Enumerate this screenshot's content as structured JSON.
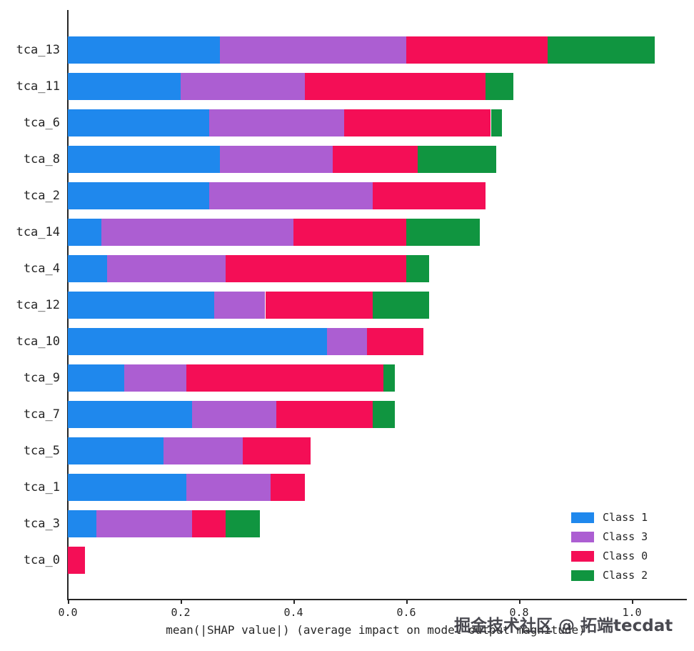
{
  "chart_data": {
    "type": "bar",
    "orientation": "horizontal",
    "stacked": true,
    "title": "",
    "xlabel": "mean(|SHAP value|) (average impact on model output magnitude)",
    "ylabel": "",
    "xlim": [
      0,
      1.1
    ],
    "grid": false,
    "legend_position": "lower right",
    "categories": [
      "tca_13",
      "tca_11",
      "tca_6",
      "tca_8",
      "tca_2",
      "tca_14",
      "tca_4",
      "tca_12",
      "tca_10",
      "tca_9",
      "tca_7",
      "tca_5",
      "tca_1",
      "tca_3",
      "tca_0"
    ],
    "x_ticks": [
      "0.0",
      "0.2",
      "0.4",
      "0.6",
      "0.8",
      "1.0"
    ],
    "series": [
      {
        "name": "Class 1",
        "color": "#1f88ed",
        "values": [
          0.27,
          0.2,
          0.25,
          0.27,
          0.25,
          0.06,
          0.07,
          0.26,
          0.46,
          0.1,
          0.22,
          0.17,
          0.21,
          0.05,
          0.0
        ]
      },
      {
        "name": "Class 3",
        "color": "#ac5ed2",
        "values": [
          0.33,
          0.22,
          0.24,
          0.2,
          0.29,
          0.34,
          0.21,
          0.09,
          0.07,
          0.11,
          0.15,
          0.14,
          0.15,
          0.17,
          0.0
        ]
      },
      {
        "name": "Class 0",
        "color": "#f40e56",
        "values": [
          0.25,
          0.32,
          0.26,
          0.15,
          0.2,
          0.2,
          0.32,
          0.19,
          0.1,
          0.35,
          0.17,
          0.12,
          0.06,
          0.06,
          0.03
        ]
      },
      {
        "name": "Class 2",
        "color": "#109540",
        "values": [
          0.19,
          0.05,
          0.02,
          0.14,
          0.0,
          0.13,
          0.04,
          0.1,
          0.0,
          0.02,
          0.04,
          0.0,
          0.0,
          0.06,
          0.0
        ]
      }
    ],
    "legend": [
      "Class 1",
      "Class 3",
      "Class 0",
      "Class 2"
    ]
  },
  "watermark": {
    "text": "掘金技术社区 @ 拓端tecdat"
  }
}
